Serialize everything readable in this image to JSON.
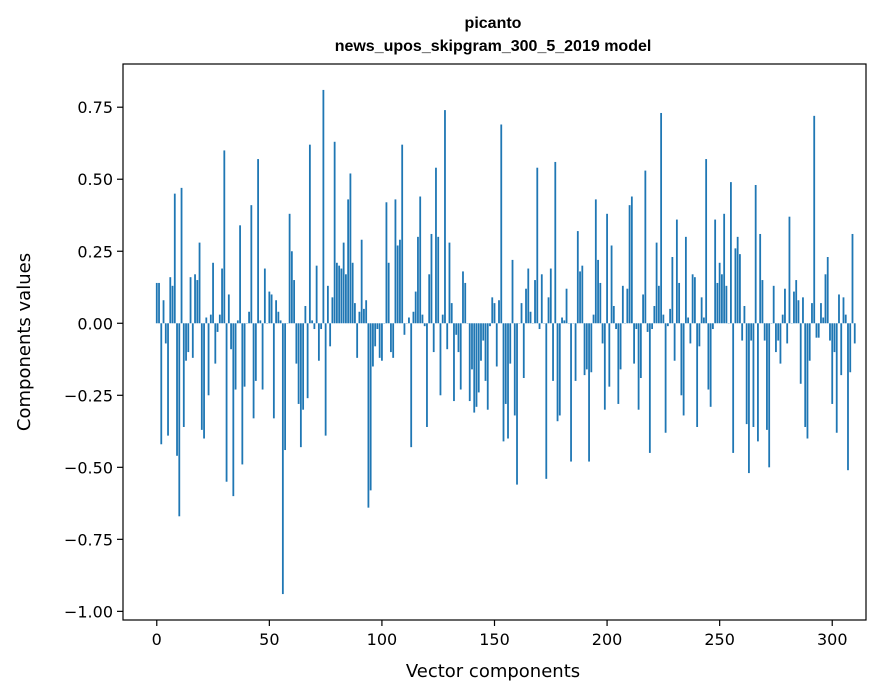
{
  "chart_data": {
    "type": "bar",
    "title": "picanto",
    "subtitle": "news_upos_skipgram_300_5_2019 model",
    "xlabel": "Vector components",
    "ylabel": "Components values",
    "xlim": [
      -15,
      315
    ],
    "ylim": [
      -1.03,
      0.9
    ],
    "xticks": [
      0,
      50,
      100,
      150,
      200,
      250,
      300
    ],
    "yticks": [
      -1.0,
      -0.75,
      -0.5,
      -0.25,
      0.0,
      0.25,
      0.5,
      0.75
    ],
    "ytick_labels": [
      "−1.00",
      "−0.75",
      "−0.50",
      "−0.25",
      "0.00",
      "0.25",
      "0.50",
      "0.75"
    ],
    "bar_color": "#1f77b4",
    "grid": false,
    "values": [
      0.14,
      0.14,
      -0.42,
      0.08,
      -0.07,
      -0.39,
      0.16,
      0.13,
      0.45,
      -0.46,
      -0.67,
      0.47,
      -0.36,
      -0.13,
      -0.1,
      0.16,
      -0.12,
      0.17,
      0.15,
      0.28,
      -0.37,
      -0.4,
      0.02,
      -0.25,
      0.03,
      0.21,
      -0.14,
      -0.03,
      0.03,
      0.19,
      0.6,
      -0.55,
      0.1,
      -0.09,
      -0.6,
      -0.23,
      0.01,
      0.34,
      -0.49,
      -0.22,
      0.0,
      0.04,
      0.41,
      -0.33,
      -0.2,
      0.57,
      0.01,
      -0.23,
      0.19,
      0.0,
      0.11,
      0.1,
      -0.33,
      0.08,
      0.04,
      0.01,
      -0.94,
      -0.44,
      0.0,
      0.38,
      0.25,
      0.15,
      -0.14,
      -0.28,
      -0.43,
      -0.3,
      0.06,
      -0.26,
      0.62,
      0.01,
      -0.02,
      0.2,
      -0.13,
      -0.02,
      0.81,
      -0.39,
      0.13,
      -0.08,
      0.09,
      0.63,
      0.21,
      0.2,
      0.19,
      0.28,
      0.17,
      0.43,
      0.52,
      0.21,
      0.07,
      -0.12,
      0.04,
      0.29,
      0.05,
      0.08,
      -0.64,
      -0.58,
      -0.15,
      -0.08,
      -0.02,
      -0.12,
      -0.13,
      0.0,
      0.42,
      0.21,
      -0.1,
      -0.12,
      0.43,
      0.27,
      0.29,
      0.62,
      -0.04,
      0.0,
      0.02,
      -0.43,
      0.04,
      0.11,
      0.3,
      0.44,
      0.03,
      -0.01,
      -0.36,
      0.17,
      0.31,
      -0.1,
      0.54,
      0.3,
      -0.25,
      0.03,
      0.74,
      -0.09,
      0.28,
      0.07,
      -0.27,
      -0.04,
      -0.1,
      -0.23,
      0.18,
      0.14,
      0.0,
      -0.27,
      -0.16,
      -0.31,
      -0.29,
      -0.24,
      -0.13,
      -0.06,
      -0.2,
      -0.3,
      -0.01,
      0.09,
      0.07,
      -0.15,
      0.08,
      0.69,
      -0.41,
      -0.28,
      -0.4,
      -0.14,
      0.22,
      -0.32,
      -0.56,
      0.0,
      0.07,
      -0.19,
      0.12,
      0.19,
      0.04,
      0.0,
      0.15,
      0.54,
      -0.02,
      0.17,
      0.0,
      -0.54,
      0.09,
      0.19,
      -0.2,
      0.56,
      -0.34,
      -0.32,
      0.02,
      0.01,
      0.12,
      0.0,
      -0.48,
      0.0,
      -0.2,
      0.32,
      0.18,
      0.2,
      -0.18,
      -0.16,
      -0.48,
      -0.17,
      0.03,
      0.43,
      0.22,
      0.14,
      -0.07,
      -0.3,
      0.38,
      -0.22,
      0.27,
      0.06,
      -0.02,
      -0.28,
      -0.16,
      0.13,
      0.0,
      0.12,
      0.41,
      0.44,
      -0.14,
      -0.02,
      -0.3,
      -0.19,
      0.1,
      0.53,
      -0.03,
      -0.45,
      -0.02,
      0.06,
      0.28,
      0.13,
      0.73,
      0.03,
      -0.38,
      -0.01,
      0.05,
      0.23,
      -0.13,
      0.36,
      0.14,
      -0.25,
      -0.32,
      0.3,
      0.02,
      -0.07,
      0.17,
      0.16,
      -0.36,
      -0.08,
      0.09,
      0.02,
      0.57,
      -0.23,
      -0.29,
      -0.02,
      0.36,
      0.14,
      0.21,
      0.17,
      0.38,
      0.13,
      0.0,
      0.49,
      -0.45,
      0.26,
      0.3,
      0.24,
      -0.06,
      0.06,
      -0.35,
      -0.52,
      -0.06,
      -0.36,
      0.48,
      -0.41,
      0.31,
      0.15,
      -0.06,
      -0.37,
      -0.5,
      0.0,
      0.13,
      -0.1,
      -0.06,
      -0.14,
      0.03,
      0.12,
      -0.07,
      0.37,
      0.0,
      0.11,
      0.15,
      0.08,
      -0.21,
      0.09,
      -0.36,
      -0.4,
      -0.13,
      0.07,
      0.72,
      -0.05,
      -0.05,
      0.07,
      0.02,
      0.17,
      0.23,
      -0.06,
      -0.28,
      -0.1,
      -0.38,
      0.1,
      -0.18,
      0.09,
      0.03,
      -0.51,
      -0.17,
      0.31,
      -0.07
    ]
  }
}
